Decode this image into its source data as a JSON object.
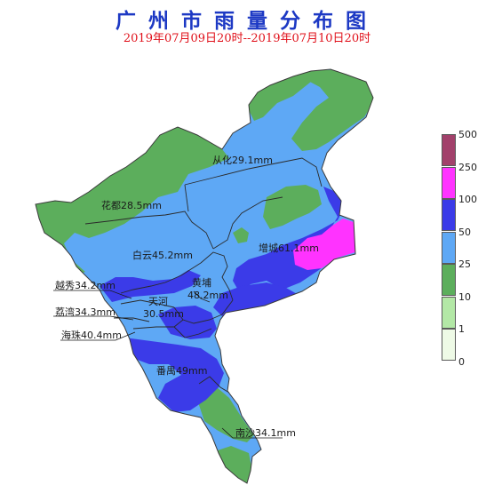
{
  "header": {
    "title": "广州市雨量分布图",
    "subtitle": "2019年07月09日20时--2019年07月10日20时"
  },
  "legend": {
    "levels": [
      {
        "label": "500",
        "color": "#a2416b"
      },
      {
        "label": "250",
        "color": "#ff33ff"
      },
      {
        "label": "100",
        "color": "#3b3be8"
      },
      {
        "label": "50",
        "color": "#5ea8f5"
      },
      {
        "label": "25",
        "color": "#5cae5c"
      },
      {
        "label": "10",
        "color": "#b3e8a6"
      },
      {
        "label": "1",
        "color": "#eefae6"
      },
      {
        "label": "0",
        "color": null
      }
    ]
  },
  "districts": [
    {
      "name": "从化29.1mm",
      "rainfall_mm": 29.1
    },
    {
      "name": "花都28.5mm",
      "rainfall_mm": 28.5
    },
    {
      "name": "白云45.2mm",
      "rainfall_mm": 45.2
    },
    {
      "name": "增城61.1mm",
      "rainfall_mm": 61.1
    },
    {
      "name": "黄埔48.2mm",
      "rainfall_mm": 48.2
    },
    {
      "name": "天河30.5mm",
      "rainfall_mm": 30.5
    },
    {
      "name": "越秀34.2mm",
      "rainfall_mm": 34.2
    },
    {
      "name": "荔湾34.3mm",
      "rainfall_mm": 34.3
    },
    {
      "name": "海珠40.4mm",
      "rainfall_mm": 40.4
    },
    {
      "name": "番禺49mm",
      "rainfall_mm": 49
    },
    {
      "name": "南沙34.1mm",
      "rainfall_mm": 34.1
    }
  ]
}
